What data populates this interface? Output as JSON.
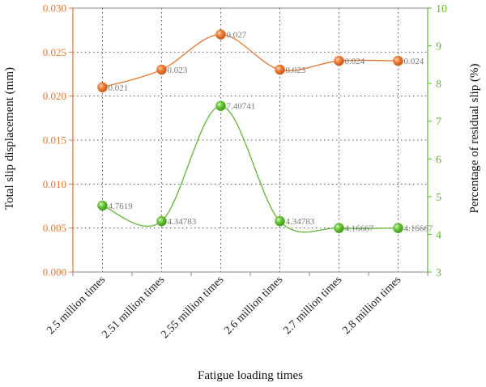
{
  "chart_data": {
    "type": "line",
    "categories": [
      "2.5 million times",
      "2.51 million times",
      "2.55 million times",
      "2.6 million times",
      "2.7 million times",
      "2.8 million times"
    ],
    "xlabel": "Fatigue loading times",
    "y_left": {
      "label": "Total slip displacement (mm)",
      "range": [
        0,
        0.03
      ],
      "ticks": [
        "0.000",
        "0.005",
        "0.010",
        "0.015",
        "0.020",
        "0.025",
        "0.030"
      ],
      "color": "#e8742a"
    },
    "y_right": {
      "label": "Percentage of residual slip (%)",
      "range": [
        3,
        10
      ],
      "ticks": [
        "3",
        "4",
        "5",
        "6",
        "7",
        "8",
        "9",
        "10"
      ],
      "color": "#5cb82e"
    },
    "grid": true,
    "series": [
      {
        "axis": "left",
        "color": "#e8742a",
        "values": [
          0.021,
          0.023,
          0.027,
          0.023,
          0.024,
          0.024
        ],
        "labels": [
          "0.021",
          "0.023",
          "0.027",
          "0.023",
          "0.024",
          "0.024"
        ]
      },
      {
        "axis": "right",
        "color": "#5cb82e",
        "values": [
          4.7619,
          4.34783,
          7.40741,
          4.34783,
          4.16667,
          4.16667
        ],
        "labels": [
          "4.7619",
          "4.34783",
          "7.40741",
          "4.34783",
          "4.16667",
          "4.16667"
        ]
      }
    ]
  }
}
